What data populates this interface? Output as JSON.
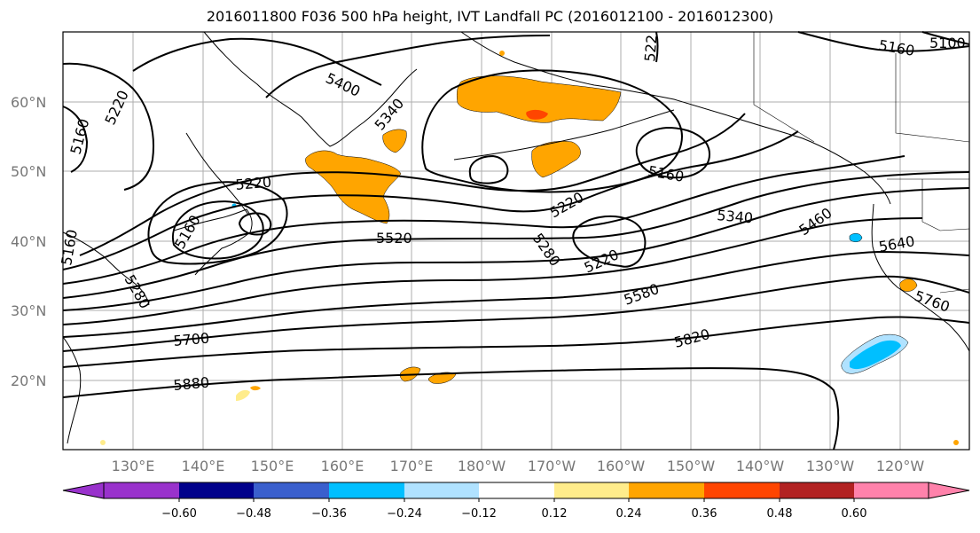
{
  "title": "2016011800 F036 500 hPa height, IVT Landfall PC (2016012100 - 2016012300)",
  "lat_labels": [
    "60°N",
    "50°N",
    "40°N",
    "30°N",
    "20°N"
  ],
  "lon_labels": [
    "130°E",
    "140°E",
    "150°E",
    "160°E",
    "170°E",
    "180°W",
    "170°W",
    "160°W",
    "150°W",
    "140°W",
    "130°W",
    "120°W"
  ],
  "contour_labels": [
    "5220",
    "5160",
    "5400",
    "5340",
    "5220",
    "5160",
    "5520",
    "5280",
    "5160",
    "5220",
    "5220",
    "5340",
    "5460",
    "5580",
    "5700",
    "5820",
    "5880",
    "5640",
    "5760",
    "5160",
    "5100",
    "522"
  ],
  "colorbar": {
    "ticks": [
      "−0.60",
      "−0.48",
      "−0.36",
      "−0.24",
      "−0.12",
      "0.12",
      "0.24",
      "0.36",
      "0.48",
      "0.60"
    ],
    "colors": [
      "#9932cc",
      "#00008b",
      "#3a5fcd",
      "#00bfff",
      "#b0e2ff",
      "#ffffff",
      "#ffec8b",
      "#ffa500",
      "#ff4500",
      "#b22222",
      "#ff82ab"
    ]
  },
  "colors": {
    "contour": "#000000",
    "grid": "#999999",
    "coast": "#000000",
    "ivt_orange": "#ffa500",
    "ivt_yellow": "#ffec8b",
    "ivt_red": "#ff4500",
    "ivt_blue": "#00bfff",
    "ivt_lightblue": "#b0e2ff"
  }
}
